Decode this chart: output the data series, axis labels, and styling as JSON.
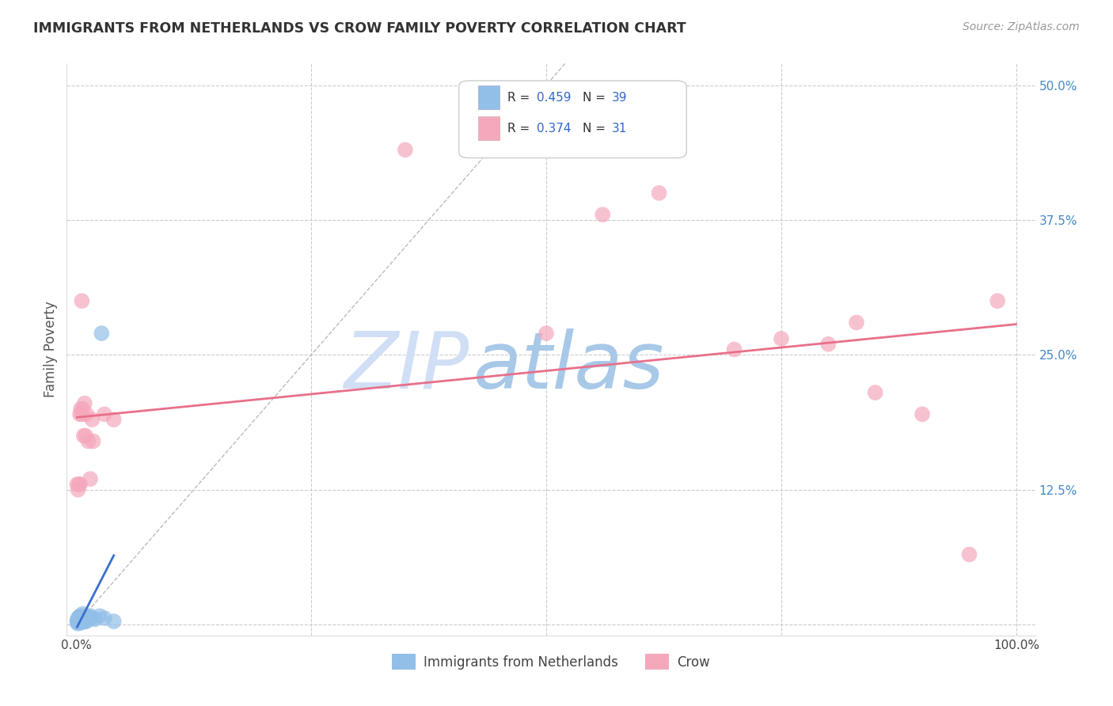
{
  "title": "IMMIGRANTS FROM NETHERLANDS VS CROW FAMILY POVERTY CORRELATION CHART",
  "source": "Source: ZipAtlas.com",
  "ylabel": "Family Poverty",
  "xlim": [
    -0.01,
    1.02
  ],
  "ylim": [
    -0.01,
    0.52
  ],
  "xticks": [
    0.0,
    0.25,
    0.5,
    0.75,
    1.0
  ],
  "xticklabels": [
    "0.0%",
    "",
    "",
    "",
    "100.0%"
  ],
  "yticks": [
    0.0,
    0.125,
    0.25,
    0.375,
    0.5
  ],
  "yticklabels": [
    "",
    "12.5%",
    "25.0%",
    "37.5%",
    "50.0%"
  ],
  "blue_color": "#92bfe8",
  "pink_color": "#f5a8bc",
  "blue_line_color": "#3a6fcc",
  "pink_line_color": "#e8708a",
  "blue_scatter": [
    [
      0.001,
      0.002
    ],
    [
      0.001,
      0.004
    ],
    [
      0.002,
      0.001
    ],
    [
      0.002,
      0.003
    ],
    [
      0.002,
      0.006
    ],
    [
      0.003,
      0.002
    ],
    [
      0.003,
      0.003
    ],
    [
      0.003,
      0.005
    ],
    [
      0.003,
      0.007
    ],
    [
      0.004,
      0.002
    ],
    [
      0.004,
      0.003
    ],
    [
      0.004,
      0.004
    ],
    [
      0.004,
      0.006
    ],
    [
      0.004,
      0.008
    ],
    [
      0.005,
      0.003
    ],
    [
      0.005,
      0.004
    ],
    [
      0.005,
      0.005
    ],
    [
      0.005,
      0.007
    ],
    [
      0.006,
      0.002
    ],
    [
      0.006,
      0.004
    ],
    [
      0.006,
      0.005
    ],
    [
      0.007,
      0.003
    ],
    [
      0.007,
      0.006
    ],
    [
      0.007,
      0.01
    ],
    [
      0.008,
      0.003
    ],
    [
      0.008,
      0.005
    ],
    [
      0.009,
      0.003
    ],
    [
      0.009,
      0.008
    ],
    [
      0.01,
      0.004
    ],
    [
      0.011,
      0.003
    ],
    [
      0.012,
      0.005
    ],
    [
      0.013,
      0.007
    ],
    [
      0.015,
      0.008
    ],
    [
      0.017,
      0.006
    ],
    [
      0.02,
      0.005
    ],
    [
      0.025,
      0.008
    ],
    [
      0.027,
      0.27
    ],
    [
      0.03,
      0.006
    ],
    [
      0.04,
      0.003
    ]
  ],
  "pink_scatter": [
    [
      0.001,
      0.13
    ],
    [
      0.002,
      0.125
    ],
    [
      0.003,
      0.13
    ],
    [
      0.004,
      0.13
    ],
    [
      0.004,
      0.195
    ],
    [
      0.005,
      0.2
    ],
    [
      0.006,
      0.195
    ],
    [
      0.006,
      0.3
    ],
    [
      0.007,
      0.2
    ],
    [
      0.008,
      0.175
    ],
    [
      0.009,
      0.205
    ],
    [
      0.01,
      0.175
    ],
    [
      0.011,
      0.195
    ],
    [
      0.013,
      0.17
    ],
    [
      0.015,
      0.135
    ],
    [
      0.017,
      0.19
    ],
    [
      0.018,
      0.17
    ],
    [
      0.03,
      0.195
    ],
    [
      0.04,
      0.19
    ],
    [
      0.35,
      0.44
    ],
    [
      0.5,
      0.27
    ],
    [
      0.56,
      0.38
    ],
    [
      0.62,
      0.4
    ],
    [
      0.7,
      0.255
    ],
    [
      0.75,
      0.265
    ],
    [
      0.8,
      0.26
    ],
    [
      0.83,
      0.28
    ],
    [
      0.85,
      0.215
    ],
    [
      0.9,
      0.195
    ],
    [
      0.95,
      0.065
    ],
    [
      0.98,
      0.3
    ]
  ],
  "watermark": "ZIPatlas",
  "watermark_color": "#c5d8f0",
  "legend_label1": "Immigrants from Netherlands",
  "legend_label2": "Crow",
  "figsize": [
    14.06,
    8.92
  ],
  "dpi": 100
}
